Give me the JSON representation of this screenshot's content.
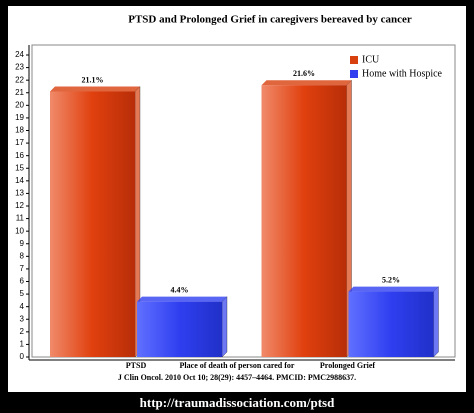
{
  "chart_data": {
    "type": "bar",
    "title": "PTSD and Prolonged Grief in caregivers bereaved by cancer",
    "x_label": "Place of death of person cared for",
    "citation": "J Clin Oncol. 2010 Oct 10; 28(29): 4457–4464. PMCID: PMC2988637.",
    "source": "http://traumadissociation.com/ptsd",
    "categories": [
      "PTSD",
      "Prolonged Grief"
    ],
    "series": [
      {
        "name": "ICU",
        "color": "#d8400e",
        "values": [
          21.1,
          21.6
        ],
        "value_labels": [
          "21.1%",
          "21.6%"
        ]
      },
      {
        "name": "Home with Hospice",
        "color": "#2f3ff0",
        "values": [
          4.4,
          5.2
        ],
        "value_labels": [
          "4.4%",
          "5.2%"
        ]
      }
    ],
    "ylim": [
      0,
      24
    ],
    "yticks": [
      0,
      1,
      2,
      3,
      4,
      5,
      6,
      7,
      8,
      9,
      10,
      11,
      12,
      13,
      14,
      15,
      16,
      17,
      18,
      19,
      20,
      21,
      22,
      23,
      24
    ],
    "legend": "top-right"
  }
}
